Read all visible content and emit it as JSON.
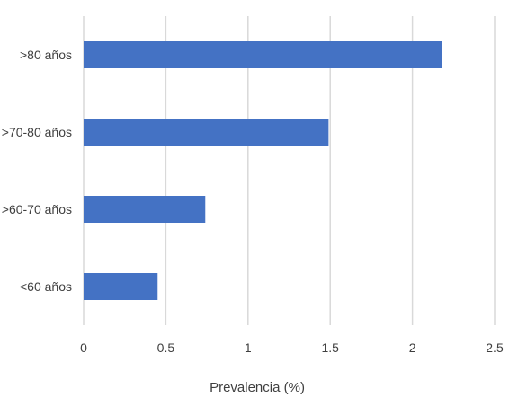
{
  "chart_data": {
    "type": "bar",
    "orientation": "horizontal",
    "categories": [
      ">80 años",
      ">70-80 años",
      ">60-70 años",
      "<60 años"
    ],
    "values": [
      2.18,
      1.49,
      0.74,
      0.45
    ],
    "xlabel": "Prevalencia (%)",
    "ylabel": "",
    "xlim": [
      0,
      2.5
    ],
    "xticks": [
      "0",
      "0.5",
      "1",
      "1.5",
      "2",
      "2.5"
    ],
    "grid": "vertical",
    "legend": "none",
    "bar_color": "#4472C4",
    "grid_color": "#d9d9d9"
  }
}
